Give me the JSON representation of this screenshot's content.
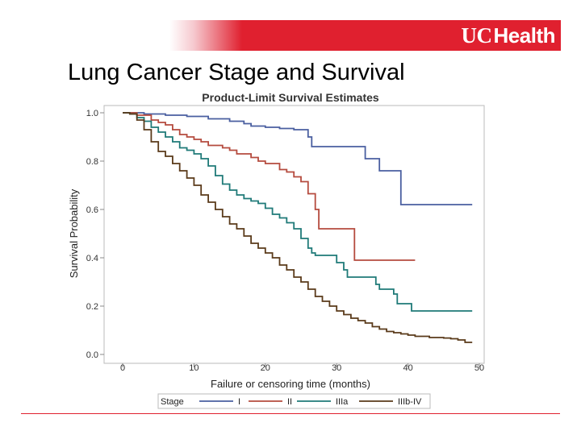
{
  "header": {
    "logo_mark": "UC",
    "logo_text": "Health",
    "title": "Lung Cancer Stage and Survival"
  },
  "colors": {
    "brand_red": "#e0202f"
  },
  "chart_data": {
    "type": "line",
    "title": "Product-Limit Survival Estimates",
    "xlabel": "Failure or censoring time (months)",
    "ylabel": "Survival Probability",
    "xlim": [
      0,
      50
    ],
    "ylim": [
      0,
      1
    ],
    "xticks": [
      "0",
      "10",
      "20",
      "30",
      "40",
      "50"
    ],
    "yticks": [
      "0.0",
      "0.2",
      "0.4",
      "0.6",
      "0.8",
      "1.0"
    ],
    "legend": {
      "title": "Stage",
      "position": "bottom"
    },
    "series": [
      {
        "name": "I",
        "color": "#4a5fa0",
        "points": [
          [
            0,
            1.0
          ],
          [
            3,
            0.995
          ],
          [
            6,
            0.99
          ],
          [
            9,
            0.985
          ],
          [
            12,
            0.975
          ],
          [
            15,
            0.965
          ],
          [
            17,
            0.955
          ],
          [
            18,
            0.945
          ],
          [
            20,
            0.94
          ],
          [
            22,
            0.935
          ],
          [
            24,
            0.93
          ],
          [
            26,
            0.9
          ],
          [
            26.5,
            0.86
          ],
          [
            30,
            0.86
          ],
          [
            33,
            0.86
          ],
          [
            34,
            0.81
          ],
          [
            35,
            0.81
          ],
          [
            36,
            0.76
          ],
          [
            38,
            0.76
          ],
          [
            39,
            0.62
          ],
          [
            49,
            0.62
          ]
        ]
      },
      {
        "name": "II",
        "color": "#b54b3e",
        "points": [
          [
            0,
            1.0
          ],
          [
            2,
            0.99
          ],
          [
            4,
            0.97
          ],
          [
            5,
            0.96
          ],
          [
            6,
            0.95
          ],
          [
            7,
            0.93
          ],
          [
            8,
            0.91
          ],
          [
            9,
            0.9
          ],
          [
            10,
            0.89
          ],
          [
            11,
            0.88
          ],
          [
            12,
            0.865
          ],
          [
            14,
            0.855
          ],
          [
            15,
            0.845
          ],
          [
            16,
            0.83
          ],
          [
            18,
            0.815
          ],
          [
            19,
            0.8
          ],
          [
            20,
            0.79
          ],
          [
            22,
            0.765
          ],
          [
            23,
            0.755
          ],
          [
            24,
            0.735
          ],
          [
            25,
            0.715
          ],
          [
            26,
            0.665
          ],
          [
            27,
            0.6
          ],
          [
            27.5,
            0.52
          ],
          [
            32,
            0.52
          ],
          [
            32.5,
            0.39
          ],
          [
            41,
            0.39
          ]
        ]
      },
      {
        "name": "IIIa",
        "color": "#1f7a78",
        "points": [
          [
            0,
            1.0
          ],
          [
            1,
            0.995
          ],
          [
            2,
            0.98
          ],
          [
            3,
            0.965
          ],
          [
            4,
            0.94
          ],
          [
            5,
            0.92
          ],
          [
            6,
            0.9
          ],
          [
            7,
            0.88
          ],
          [
            8,
            0.855
          ],
          [
            9,
            0.845
          ],
          [
            10,
            0.83
          ],
          [
            11,
            0.81
          ],
          [
            12,
            0.78
          ],
          [
            13,
            0.74
          ],
          [
            14,
            0.705
          ],
          [
            15,
            0.68
          ],
          [
            16,
            0.66
          ],
          [
            17,
            0.645
          ],
          [
            18,
            0.635
          ],
          [
            19,
            0.625
          ],
          [
            20,
            0.605
          ],
          [
            21,
            0.58
          ],
          [
            22,
            0.565
          ],
          [
            23,
            0.545
          ],
          [
            24,
            0.52
          ],
          [
            25,
            0.48
          ],
          [
            26,
            0.44
          ],
          [
            26.5,
            0.42
          ],
          [
            27,
            0.41
          ],
          [
            29,
            0.41
          ],
          [
            30,
            0.38
          ],
          [
            31,
            0.35
          ],
          [
            31.5,
            0.32
          ],
          [
            35,
            0.32
          ],
          [
            35.5,
            0.29
          ],
          [
            36,
            0.27
          ],
          [
            38,
            0.25
          ],
          [
            38.5,
            0.21
          ],
          [
            40,
            0.21
          ],
          [
            40.5,
            0.18
          ],
          [
            49,
            0.18
          ]
        ]
      },
      {
        "name": "IIIb-IV",
        "color": "#5a3a1a",
        "points": [
          [
            0,
            1.0
          ],
          [
            1,
            0.995
          ],
          [
            2,
            0.97
          ],
          [
            3,
            0.93
          ],
          [
            4,
            0.88
          ],
          [
            5,
            0.84
          ],
          [
            6,
            0.82
          ],
          [
            7,
            0.79
          ],
          [
            8,
            0.76
          ],
          [
            9,
            0.73
          ],
          [
            10,
            0.7
          ],
          [
            11,
            0.66
          ],
          [
            12,
            0.63
          ],
          [
            13,
            0.6
          ],
          [
            14,
            0.57
          ],
          [
            15,
            0.54
          ],
          [
            16,
            0.52
          ],
          [
            17,
            0.49
          ],
          [
            18,
            0.46
          ],
          [
            19,
            0.44
          ],
          [
            20,
            0.42
          ],
          [
            21,
            0.4
          ],
          [
            22,
            0.37
          ],
          [
            23,
            0.35
          ],
          [
            24,
            0.32
          ],
          [
            25,
            0.3
          ],
          [
            26,
            0.27
          ],
          [
            27,
            0.24
          ],
          [
            28,
            0.22
          ],
          [
            29,
            0.2
          ],
          [
            30,
            0.18
          ],
          [
            31,
            0.165
          ],
          [
            32,
            0.15
          ],
          [
            33,
            0.14
          ],
          [
            34,
            0.13
          ],
          [
            35,
            0.115
          ],
          [
            36,
            0.105
          ],
          [
            37,
            0.095
          ],
          [
            38,
            0.09
          ],
          [
            39,
            0.085
          ],
          [
            40,
            0.08
          ],
          [
            41,
            0.075
          ],
          [
            43,
            0.07
          ],
          [
            45,
            0.068
          ],
          [
            46,
            0.065
          ],
          [
            47,
            0.06
          ],
          [
            48,
            0.05
          ],
          [
            49,
            0.05
          ]
        ]
      }
    ]
  }
}
